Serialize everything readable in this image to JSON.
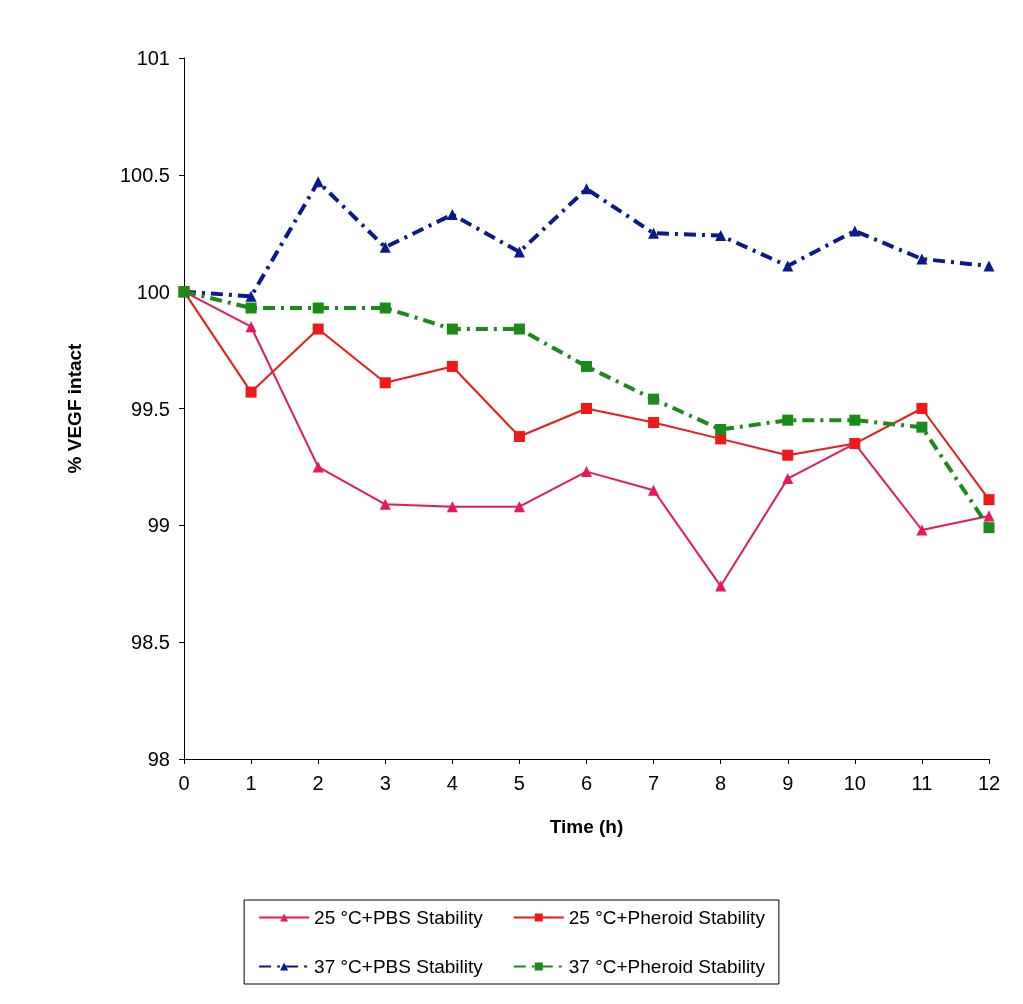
{
  "chart_data": {
    "type": "line",
    "xlabel": "Time (h)",
    "ylabel": "% VEGF intact",
    "x": [
      0,
      1,
      2,
      3,
      4,
      5,
      6,
      7,
      8,
      9,
      10,
      11,
      12
    ],
    "xlim": [
      0,
      12
    ],
    "xticks": [
      0,
      1,
      2,
      3,
      4,
      5,
      6,
      7,
      8,
      9,
      10,
      11,
      12
    ],
    "ylim": [
      98,
      101
    ],
    "yticks": [
      98,
      98.5,
      99,
      99.5,
      100,
      100.5,
      101
    ],
    "grid": false,
    "legend": "bottom",
    "series": [
      {
        "name": "25 °C+PBS Stability",
        "color": "#e8195a",
        "marker": "triangle",
        "line_style": "solid",
        "values": [
          100,
          99.85,
          99.25,
          99.09,
          99.08,
          99.08,
          99.23,
          99.15,
          98.74,
          99.2,
          99.35,
          98.98,
          99.04
        ]
      },
      {
        "name": "25 °C+Pheroid Stability",
        "color": "#f01818",
        "marker": "square",
        "line_style": "solid",
        "values": [
          100,
          99.57,
          99.84,
          99.61,
          99.68,
          99.38,
          99.5,
          99.44,
          99.37,
          99.3,
          99.35,
          99.5,
          99.11
        ]
      },
      {
        "name": "37 °C+PBS Stability",
        "color": "#0a1a8c",
        "marker": "triangle",
        "line_style": "dashed",
        "values": [
          100,
          99.98,
          100.47,
          100.19,
          100.33,
          100.17,
          100.44,
          100.25,
          100.24,
          100.11,
          100.26,
          100.14,
          100.11
        ]
      },
      {
        "name": "37 °C+Pheroid Stability",
        "color": "#1a8a1a",
        "marker": "square",
        "line_style": "dashed",
        "values": [
          100,
          99.93,
          99.93,
          99.93,
          99.84,
          99.84,
          99.68,
          99.54,
          99.41,
          99.45,
          99.45,
          99.42,
          98.99
        ]
      }
    ]
  }
}
